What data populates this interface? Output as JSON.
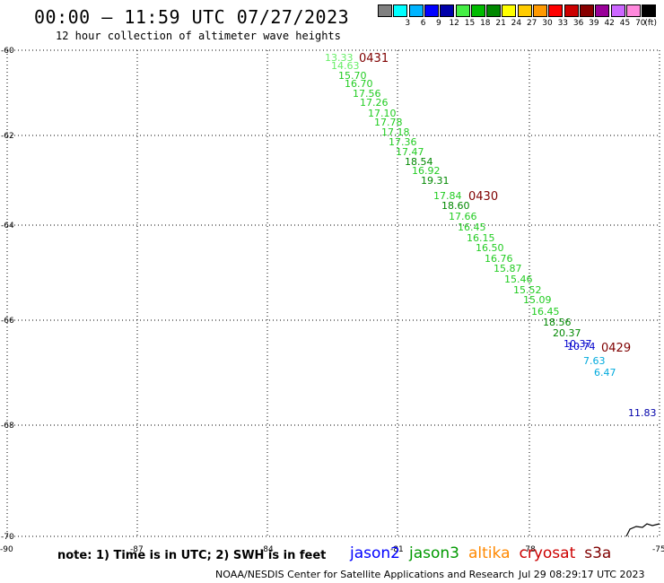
{
  "header": {
    "title": "00:00 – 11:59 UTC 07/27/2023",
    "subtitle": "12 hour collection of altimeter wave heights"
  },
  "legend": {
    "unit": "(ft)",
    "items": [
      {
        "label": "",
        "color": "#808080"
      },
      {
        "label": "3",
        "color": "#00ffff"
      },
      {
        "label": "6",
        "color": "#00b4ff"
      },
      {
        "label": "9",
        "color": "#0000ff"
      },
      {
        "label": "12",
        "color": "#0000aa"
      },
      {
        "label": "15",
        "color": "#44ee44"
      },
      {
        "label": "18",
        "color": "#00bb00"
      },
      {
        "label": "21",
        "color": "#008800"
      },
      {
        "label": "24",
        "color": "#ffff00"
      },
      {
        "label": "27",
        "color": "#ffcc00"
      },
      {
        "label": "30",
        "color": "#ff9900"
      },
      {
        "label": "33",
        "color": "#ff0000"
      },
      {
        "label": "36",
        "color": "#cc0000"
      },
      {
        "label": "39",
        "color": "#880000"
      },
      {
        "label": "42",
        "color": "#990099"
      },
      {
        "label": "45",
        "color": "#cc66ff"
      },
      {
        "label": "70",
        "color": "#ff88dd"
      },
      {
        "label": "",
        "color": "#000000"
      }
    ]
  },
  "map": {
    "lat_labels": [
      "-60",
      "-62",
      "-64",
      "-66",
      "-68",
      "-70"
    ],
    "lon_labels": [
      "-90",
      "-87",
      "-84",
      "-81",
      "-78",
      "-75"
    ],
    "time_labels": [
      {
        "text": "0431"
      },
      {
        "text": "0430"
      },
      {
        "text": "0429"
      }
    ],
    "points": [
      {
        "v": "13.33",
        "c": "#66ee66"
      },
      {
        "v": "14.63",
        "c": "#66ee66"
      },
      {
        "v": "15.70",
        "c": "#22cc22"
      },
      {
        "v": "16.70",
        "c": "#22cc22"
      },
      {
        "v": "17.56",
        "c": "#22cc22"
      },
      {
        "v": "17.26",
        "c": "#22cc22"
      },
      {
        "v": "17.10",
        "c": "#22cc22"
      },
      {
        "v": "17.78",
        "c": "#22cc22"
      },
      {
        "v": "17.18",
        "c": "#22cc22"
      },
      {
        "v": "17.36",
        "c": "#22cc22"
      },
      {
        "v": "17.47",
        "c": "#22cc22"
      },
      {
        "v": "18.54",
        "c": "#008800"
      },
      {
        "v": "16.92",
        "c": "#22cc22"
      },
      {
        "v": "19.31",
        "c": "#008800"
      },
      {
        "v": "17.84",
        "c": "#22cc22"
      },
      {
        "v": "18.60",
        "c": "#008800"
      },
      {
        "v": "17.66",
        "c": "#22cc22"
      },
      {
        "v": "16.45",
        "c": "#22cc22"
      },
      {
        "v": "16.15",
        "c": "#22cc22"
      },
      {
        "v": "16.50",
        "c": "#22cc22"
      },
      {
        "v": "16.76",
        "c": "#22cc22"
      },
      {
        "v": "15.87",
        "c": "#22cc22"
      },
      {
        "v": "15.46",
        "c": "#22cc22"
      },
      {
        "v": "15.52",
        "c": "#22cc22"
      },
      {
        "v": "15.09",
        "c": "#22cc22"
      },
      {
        "v": "16.45",
        "c": "#22cc22"
      },
      {
        "v": "18.56",
        "c": "#008800"
      },
      {
        "v": "20.37",
        "c": "#008800"
      },
      {
        "v": "10.37",
        "c": "#0000cc"
      },
      {
        "v": "10.74",
        "c": "#0000cc"
      },
      {
        "v": "7.63",
        "c": "#00aadd"
      },
      {
        "v": "6.47",
        "c": "#00aadd"
      },
      {
        "v": "11.83",
        "c": "#0000aa"
      }
    ]
  },
  "footer": {
    "note": "note: 1) Time is in UTC; 2) SWH is in feet",
    "satellites": [
      {
        "name": "jason2",
        "color": "#0000ff"
      },
      {
        "name": "jason3",
        "color": "#009900"
      },
      {
        "name": "altika",
        "color": "#ff8800"
      },
      {
        "name": "cryosat",
        "color": "#cc0000"
      },
      {
        "name": "s3a",
        "color": "#7f0000"
      }
    ],
    "credit": "NOAA/NESDIS Center for Satellite Applications and Research",
    "timestamp": "Jul 29 08:29:17 UTC 2023"
  }
}
